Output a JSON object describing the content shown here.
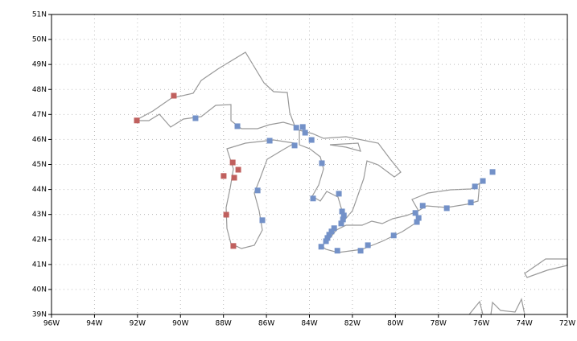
{
  "chart_data": {
    "type": "scatter",
    "xlim": [
      -96,
      -72
    ],
    "ylim": [
      39,
      51
    ],
    "xticks": [
      {
        "value": -96,
        "label": "96W"
      },
      {
        "value": -94,
        "label": "94W"
      },
      {
        "value": -92,
        "label": "92W"
      },
      {
        "value": -90,
        "label": "90W"
      },
      {
        "value": -88,
        "label": "88W"
      },
      {
        "value": -86,
        "label": "86W"
      },
      {
        "value": -84,
        "label": "84W"
      },
      {
        "value": -82,
        "label": "82W"
      },
      {
        "value": -80,
        "label": "80W"
      },
      {
        "value": -78,
        "label": "78W"
      },
      {
        "value": -76,
        "label": "76W"
      },
      {
        "value": -74,
        "label": "74W"
      },
      {
        "value": -72,
        "label": "72W"
      }
    ],
    "yticks": [
      {
        "value": 39,
        "label": "39N"
      },
      {
        "value": 40,
        "label": "40N"
      },
      {
        "value": 41,
        "label": "41N"
      },
      {
        "value": 42,
        "label": "42N"
      },
      {
        "value": 43,
        "label": "43N"
      },
      {
        "value": 44,
        "label": "44N"
      },
      {
        "value": 45,
        "label": "45N"
      },
      {
        "value": 46,
        "label": "46N"
      },
      {
        "value": 47,
        "label": "47N"
      },
      {
        "value": 48,
        "label": "48N"
      },
      {
        "value": 49,
        "label": "49N"
      },
      {
        "value": 50,
        "label": "50N"
      },
      {
        "value": 51,
        "label": "51N"
      }
    ],
    "grid": true,
    "series": [
      {
        "color": "#c0605e",
        "x": [
          -92.03,
          -90.31,
          -87.57,
          -87.31,
          -87.99,
          -87.5,
          -87.87,
          -87.54
        ],
        "values": [
          46.76,
          47.75,
          45.08,
          44.79,
          44.54,
          44.47,
          42.99,
          41.74
        ]
      },
      {
        "color": "#7391c8",
        "x": [
          -89.3,
          -87.35,
          -85.85,
          -84.61,
          -84.31,
          -84.2,
          -83.9,
          -84.69,
          -83.42,
          -83.83,
          -82.63,
          -86.41,
          -86.19,
          -82.48,
          -82.4,
          -82.44,
          -82.52,
          -82.85,
          -82.97,
          -83.08,
          -83.16,
          -83.23,
          -83.45,
          -82.7,
          -81.62,
          -81.28,
          -80.08,
          -79.07,
          -78.92,
          -79.0,
          -78.73,
          -77.61,
          -76.49,
          -76.3,
          -75.93,
          -75.48
        ],
        "values": [
          46.85,
          46.53,
          45.95,
          46.47,
          46.5,
          46.27,
          45.98,
          45.76,
          45.05,
          43.64,
          43.83,
          43.96,
          42.77,
          43.12,
          42.96,
          42.8,
          42.64,
          42.45,
          42.32,
          42.19,
          42.06,
          41.93,
          41.71,
          41.55,
          41.55,
          41.77,
          42.16,
          43.06,
          42.86,
          42.7,
          43.35,
          43.25,
          43.48,
          44.12,
          44.34,
          44.7
        ]
      }
    ]
  }
}
